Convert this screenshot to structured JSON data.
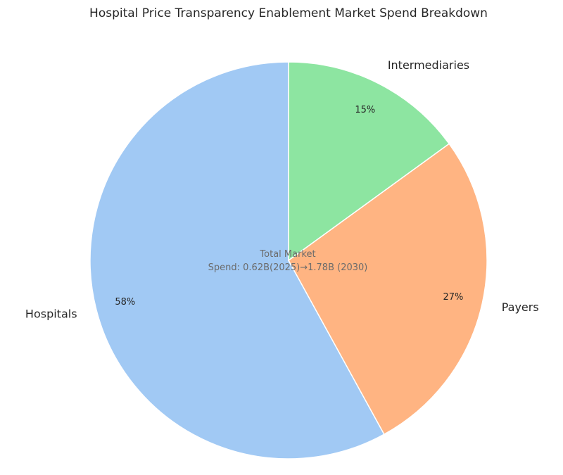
{
  "chart_data": {
    "type": "pie",
    "title": "Hospital Price Transparency Enablement Market Spend Breakdown",
    "categories": [
      "Hospitals",
      "Payers",
      "Intermediaries"
    ],
    "values": [
      58,
      27,
      15
    ],
    "percent_labels": [
      "58%",
      "27%",
      "15%"
    ],
    "colors": [
      "#a1c9f4",
      "#ffb482",
      "#8de5a1"
    ],
    "start_angle_deg": 90,
    "direction": "counterclockwise",
    "annotation_lines": [
      "Total Market",
      "Spend: 0.62B(2025)→1.78B (2030)"
    ]
  }
}
